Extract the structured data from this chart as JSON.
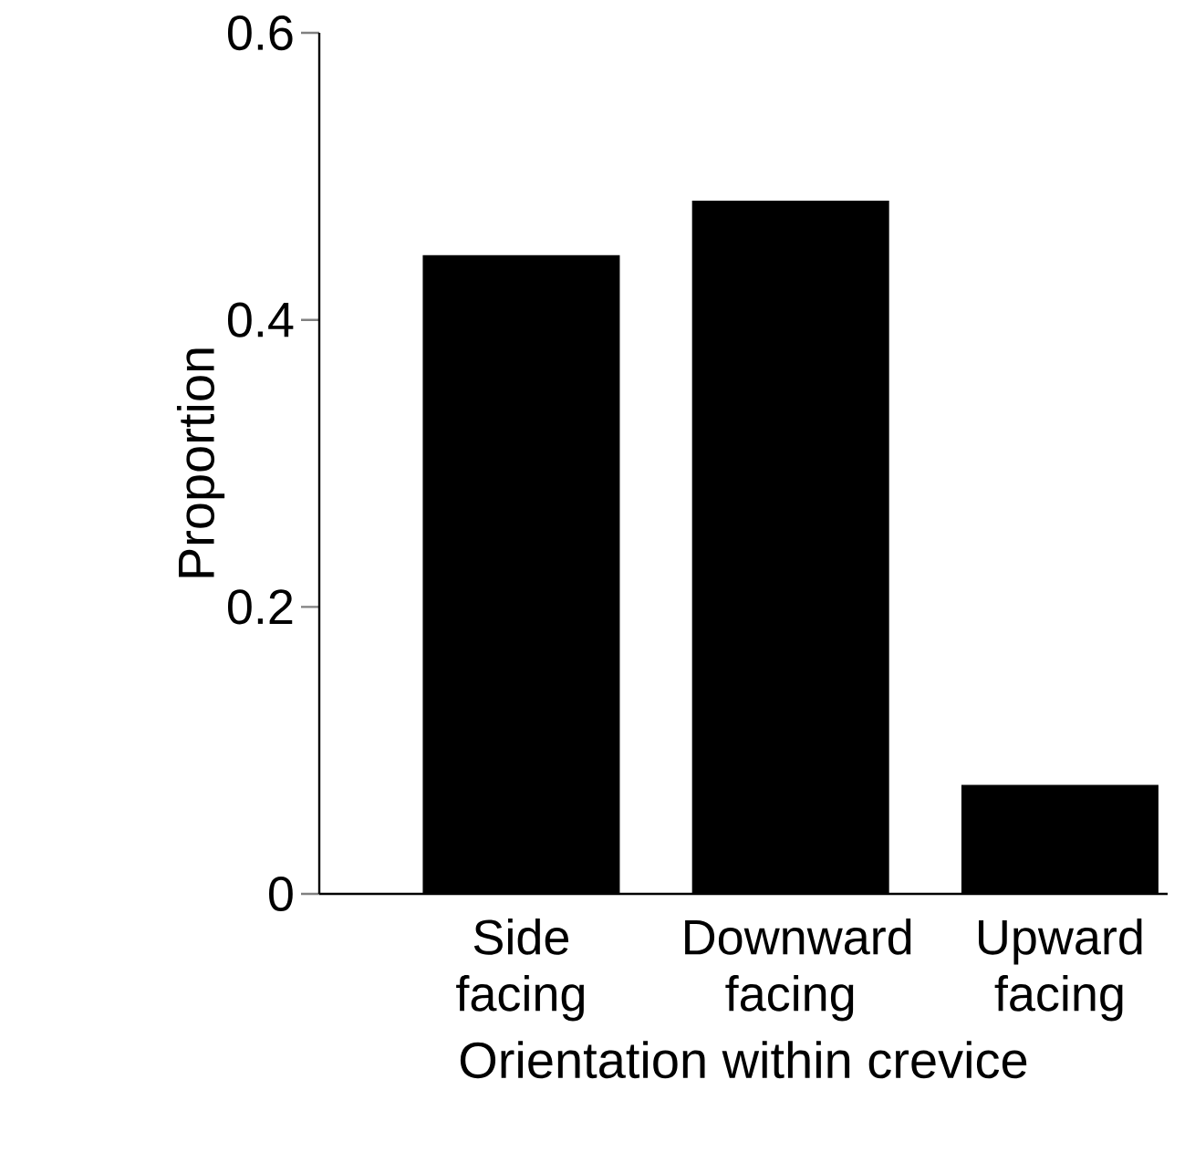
{
  "chart_data": {
    "type": "bar",
    "xlabel": "Orientation within crevice",
    "ylabel": "Proportion",
    "categories": [
      "Side facing",
      "Downward facing",
      "Upward facing"
    ],
    "values": [
      0.445,
      0.483,
      0.076
    ],
    "color": "#000000",
    "ylim": [
      0,
      0.6
    ],
    "yticks": [
      0,
      0.2,
      0.4,
      0.6
    ]
  }
}
